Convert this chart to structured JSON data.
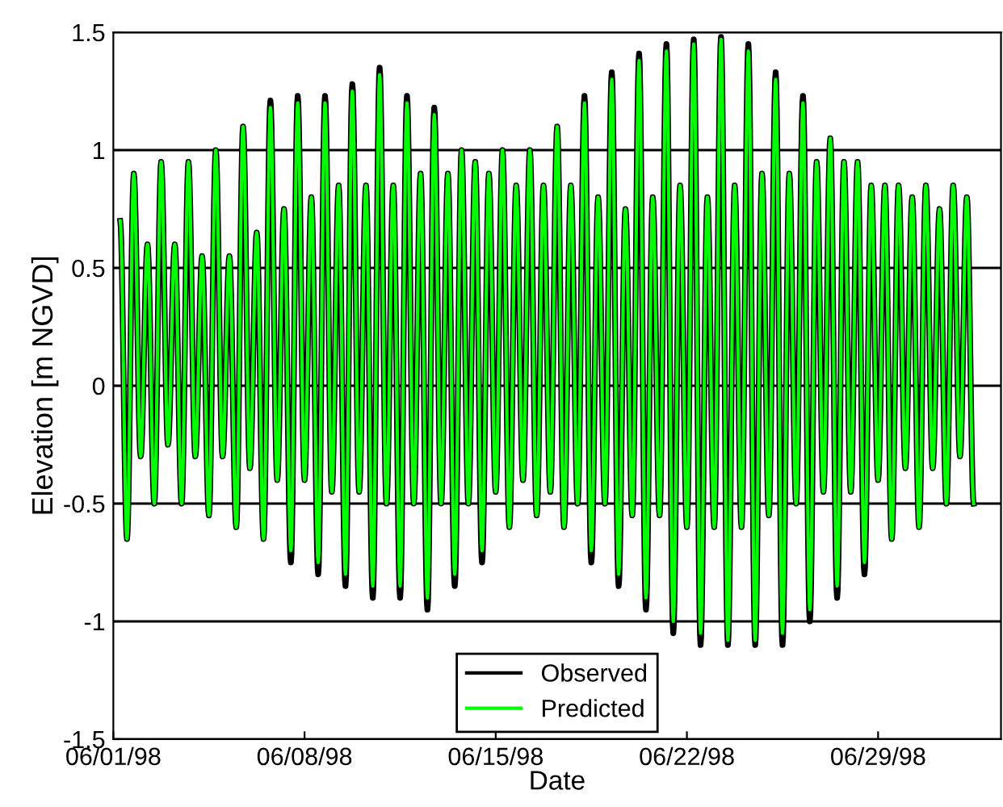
{
  "chart_data": {
    "type": "line",
    "xlabel": "Date",
    "ylabel": "Elevation [m NGVD]",
    "x": [
      "1998-06-01T06:00",
      "1998-06-01T12:00",
      "1998-06-01T18:00",
      "1998-06-02T00:00",
      "1998-06-02T06:00",
      "1998-06-02T12:00",
      "1998-06-02T18:00",
      "1998-06-03T00:00",
      "1998-06-03T06:00",
      "1998-06-03T12:00",
      "1998-06-03T18:00",
      "1998-06-04T00:00",
      "1998-06-04T06:00",
      "1998-06-04T12:00",
      "1998-06-04T18:00",
      "1998-06-05T00:00",
      "1998-06-05T06:00",
      "1998-06-05T12:00",
      "1998-06-05T18:00",
      "1998-06-06T00:00",
      "1998-06-06T06:00",
      "1998-06-06T12:00",
      "1998-06-06T18:00",
      "1998-06-07T00:00",
      "1998-06-07T06:00",
      "1998-06-07T12:00",
      "1998-06-07T18:00",
      "1998-06-08T00:00",
      "1998-06-08T06:00",
      "1998-06-08T12:00",
      "1998-06-08T18:00",
      "1998-06-09T00:00",
      "1998-06-09T06:00",
      "1998-06-09T12:00",
      "1998-06-09T18:00",
      "1998-06-10T00:00",
      "1998-06-10T06:00",
      "1998-06-10T12:00",
      "1998-06-10T18:00",
      "1998-06-11T00:00",
      "1998-06-11T06:00",
      "1998-06-11T12:00",
      "1998-06-11T18:00",
      "1998-06-12T00:00",
      "1998-06-12T06:00",
      "1998-06-12T12:00",
      "1998-06-12T18:00",
      "1998-06-13T00:00",
      "1998-06-13T06:00",
      "1998-06-13T12:00",
      "1998-06-13T18:00",
      "1998-06-14T00:00",
      "1998-06-14T06:00",
      "1998-06-14T12:00",
      "1998-06-14T18:00",
      "1998-06-15T00:00",
      "1998-06-15T06:00",
      "1998-06-15T12:00",
      "1998-06-15T18:00",
      "1998-06-16T00:00",
      "1998-06-16T06:00",
      "1998-06-16T12:00",
      "1998-06-16T18:00",
      "1998-06-17T00:00",
      "1998-06-17T06:00",
      "1998-06-17T12:00",
      "1998-06-17T18:00",
      "1998-06-18T00:00",
      "1998-06-18T06:00",
      "1998-06-18T12:00",
      "1998-06-18T18:00",
      "1998-06-19T00:00",
      "1998-06-19T06:00",
      "1998-06-19T12:00",
      "1998-06-19T18:00",
      "1998-06-20T00:00",
      "1998-06-20T06:00",
      "1998-06-20T12:00",
      "1998-06-20T18:00",
      "1998-06-21T00:00",
      "1998-06-21T06:00",
      "1998-06-21T12:00",
      "1998-06-21T18:00",
      "1998-06-22T00:00",
      "1998-06-22T06:00",
      "1998-06-22T12:00",
      "1998-06-22T18:00",
      "1998-06-23T00:00",
      "1998-06-23T06:00",
      "1998-06-23T12:00",
      "1998-06-23T18:00",
      "1998-06-24T00:00",
      "1998-06-24T06:00",
      "1998-06-24T12:00",
      "1998-06-24T18:00",
      "1998-06-25T00:00",
      "1998-06-25T06:00",
      "1998-06-25T12:00",
      "1998-06-25T18:00",
      "1998-06-26T00:00",
      "1998-06-26T06:00",
      "1998-06-26T12:00",
      "1998-06-26T18:00",
      "1998-06-27T00:00",
      "1998-06-27T06:00",
      "1998-06-27T12:00",
      "1998-06-27T18:00",
      "1998-06-28T00:00",
      "1998-06-28T06:00",
      "1998-06-28T12:00",
      "1998-06-28T18:00",
      "1998-06-29T00:00",
      "1998-06-29T06:00",
      "1998-06-29T12:00",
      "1998-06-29T18:00",
      "1998-06-30T00:00",
      "1998-06-30T06:00",
      "1998-06-30T12:00",
      "1998-06-30T18:00",
      "1998-07-01T00:00",
      "1998-07-01T06:00",
      "1998-07-01T12:00",
      "1998-07-01T18:00",
      "1998-07-02T00:00",
      "1998-07-02T06:00",
      "1998-07-02T12:00"
    ],
    "series": [
      {
        "name": "Observed",
        "color": "#000000",
        "values": [
          0.7,
          -0.65,
          0.9,
          -0.3,
          0.6,
          -0.5,
          0.95,
          -0.25,
          0.6,
          -0.5,
          0.95,
          -0.3,
          0.55,
          -0.55,
          1.0,
          -0.3,
          0.55,
          -0.6,
          1.1,
          -0.35,
          0.65,
          -0.65,
          1.21,
          -0.4,
          0.75,
          -0.75,
          1.23,
          -0.4,
          0.8,
          -0.8,
          1.23,
          -0.45,
          0.85,
          -0.85,
          1.28,
          -0.45,
          0.85,
          -0.9,
          1.35,
          -0.5,
          0.85,
          -0.9,
          1.23,
          -0.5,
          0.9,
          -0.95,
          1.18,
          -0.5,
          0.9,
          -0.85,
          1.0,
          -0.5,
          0.95,
          -0.75,
          0.9,
          -0.45,
          1.0,
          -0.6,
          0.85,
          -0.4,
          1.0,
          -0.55,
          0.85,
          -0.45,
          1.1,
          -0.6,
          0.85,
          -0.5,
          1.23,
          -0.75,
          0.8,
          -0.5,
          1.33,
          -0.85,
          0.75,
          -0.55,
          1.41,
          -0.95,
          0.8,
          -0.55,
          1.45,
          -1.05,
          0.85,
          -0.6,
          1.47,
          -1.1,
          0.8,
          -0.6,
          1.48,
          -1.1,
          0.85,
          -0.6,
          1.45,
          -1.1,
          0.9,
          -0.55,
          1.33,
          -1.1,
          0.9,
          -0.5,
          1.23,
          -1.0,
          0.95,
          -0.45,
          1.05,
          -0.9,
          0.95,
          -0.45,
          0.95,
          -0.8,
          0.85,
          -0.4,
          0.85,
          -0.65,
          0.85,
          -0.35,
          0.8,
          -0.6,
          0.85,
          -0.35,
          0.75,
          -0.5,
          0.85,
          -0.3,
          0.8,
          -0.5
        ]
      },
      {
        "name": "Predicted",
        "color": "#00ff00",
        "values": [
          0.7,
          -0.65,
          0.9,
          -0.3,
          0.6,
          -0.5,
          0.95,
          -0.25,
          0.6,
          -0.5,
          0.95,
          -0.3,
          0.55,
          -0.55,
          1.0,
          -0.3,
          0.55,
          -0.6,
          1.1,
          -0.35,
          0.65,
          -0.65,
          1.18,
          -0.4,
          0.75,
          -0.7,
          1.2,
          -0.4,
          0.8,
          -0.75,
          1.2,
          -0.45,
          0.85,
          -0.8,
          1.25,
          -0.45,
          0.85,
          -0.85,
          1.32,
          -0.5,
          0.85,
          -0.85,
          1.2,
          -0.5,
          0.9,
          -0.9,
          1.15,
          -0.5,
          0.9,
          -0.8,
          1.0,
          -0.5,
          0.95,
          -0.7,
          0.9,
          -0.45,
          1.0,
          -0.6,
          0.85,
          -0.4,
          1.0,
          -0.55,
          0.85,
          -0.45,
          1.1,
          -0.6,
          0.85,
          -0.5,
          1.2,
          -0.7,
          0.8,
          -0.5,
          1.3,
          -0.8,
          0.75,
          -0.55,
          1.38,
          -0.9,
          0.8,
          -0.55,
          1.42,
          -1.0,
          0.85,
          -0.6,
          1.45,
          -1.05,
          0.8,
          -0.6,
          1.47,
          -1.08,
          0.85,
          -0.6,
          1.42,
          -1.08,
          0.9,
          -0.55,
          1.3,
          -1.05,
          0.9,
          -0.5,
          1.2,
          -0.95,
          0.95,
          -0.45,
          1.05,
          -0.85,
          0.95,
          -0.45,
          0.95,
          -0.75,
          0.85,
          -0.4,
          0.85,
          -0.65,
          0.85,
          -0.35,
          0.8,
          -0.6,
          0.85,
          -0.35,
          0.75,
          -0.5,
          0.85,
          -0.3,
          0.8,
          -0.5
        ]
      }
    ],
    "xlim": [
      "1998-06-01",
      "1998-07-03T12:00"
    ],
    "xticks": [
      {
        "value": "1998-06-01",
        "label": "06/01/98"
      },
      {
        "value": "1998-06-08",
        "label": "06/08/98"
      },
      {
        "value": "1998-06-15",
        "label": "06/15/98"
      },
      {
        "value": "1998-06-22",
        "label": "06/22/98"
      },
      {
        "value": "1998-06-29",
        "label": "06/29/98"
      }
    ],
    "ylim": [
      -1.5,
      1.5
    ],
    "yticks": [
      -1.5,
      -1,
      -0.5,
      0,
      0.5,
      1,
      1.5
    ],
    "grid": "y",
    "legend": "bottom",
    "line_style": "solid"
  }
}
